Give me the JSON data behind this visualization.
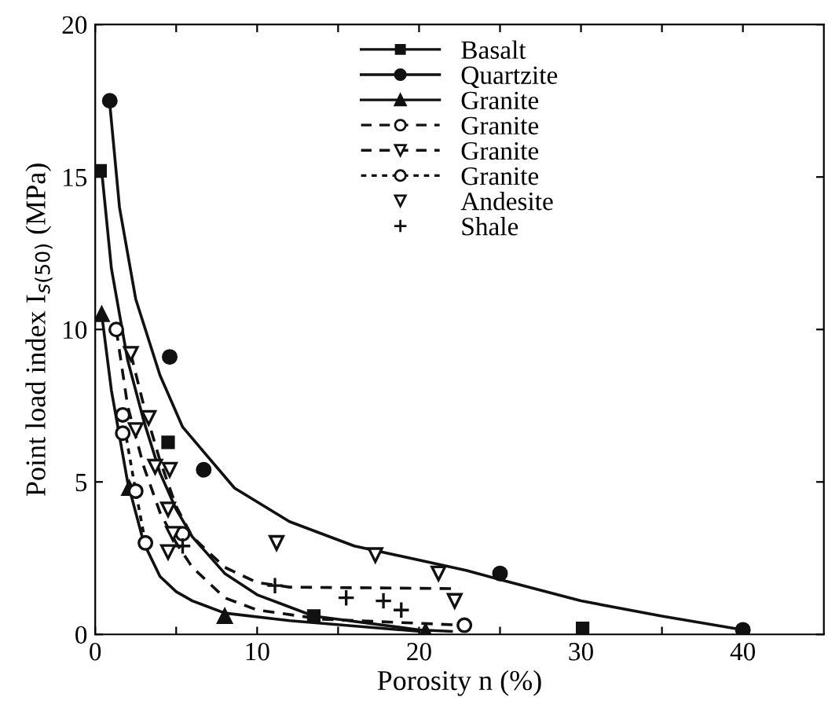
{
  "chart_data": {
    "type": "scatter",
    "xlabel": "Porosity n (%)",
    "ylabel": "Point load index I$_{s(50)}$ (MPa)",
    "xlim": [
      0,
      45
    ],
    "ylim": [
      0,
      20
    ],
    "xticks": [
      0,
      {
        "value": 5,
        "label": null
      },
      10,
      {
        "value": 15,
        "label": null
      },
      20,
      {
        "value": 25,
        "label": null
      },
      30,
      {
        "value": 35,
        "label": null
      },
      40
    ],
    "yticks": [
      0,
      5,
      10,
      15,
      20
    ],
    "grid": false,
    "legend": "top",
    "color": "#111111",
    "series": [
      {
        "name": "Basalt",
        "marker": "square",
        "x": [
          0.3,
          4.5,
          13.5,
          30.1
        ],
        "values": [
          15.2,
          6.3,
          0.6,
          0.2
        ]
      },
      {
        "type": "line",
        "line_style": "solid",
        "x": [
          0,
          0.4,
          1,
          2,
          3,
          4,
          5,
          6,
          8,
          10,
          13.5,
          20,
          22
        ],
        "values": [
          15.2,
          15.2,
          12,
          9,
          7,
          5.3,
          4.1,
          3.2,
          2,
          1.3,
          0.6,
          0.15,
          0.1
        ]
      },
      {
        "name": "Quartzite",
        "marker": "circle",
        "x": [
          0.9,
          4.6,
          6.7,
          25,
          40
        ],
        "values": [
          17.5,
          9.1,
          5.4,
          2.0,
          0.15
        ]
      },
      {
        "type": "line",
        "line_style": "solid",
        "x": [
          0.9,
          1.5,
          2.5,
          4,
          5.4,
          8.6,
          12,
          16,
          22.9,
          25,
          30,
          35,
          40
        ],
        "values": [
          17.4,
          14,
          11,
          8.5,
          6.8,
          4.8,
          3.7,
          2.9,
          2.1,
          1.8,
          1.1,
          0.6,
          0.15
        ]
      },
      {
        "name": "Granite",
        "marker": "triangle",
        "x": [
          0.4,
          2.1,
          8.0,
          20.4
        ],
        "values": [
          10.5,
          4.8,
          0.6,
          0.1
        ]
      },
      {
        "type": "line",
        "line_style": "solid",
        "x": [
          0.4,
          1,
          2,
          3,
          4,
          5,
          6,
          8,
          12,
          20
        ],
        "values": [
          10.5,
          8,
          5,
          3,
          1.9,
          1.4,
          1.1,
          0.7,
          0.45,
          0.1
        ]
      },
      {
        "name": "Granite",
        "marker": "circle",
        "color": "#ffffff",
        "x": [
          1.3,
          5.4,
          22.8
        ],
        "values": [
          10.0,
          3.3,
          0.3
        ]
      },
      {
        "type": "line",
        "line_style": "dashed",
        "x": [
          1.3,
          2,
          3,
          4,
          5,
          6,
          8,
          10,
          14,
          22.8
        ],
        "values": [
          10,
          7.5,
          5.5,
          4,
          3,
          2.2,
          1.2,
          0.8,
          0.5,
          0.3
        ]
      },
      {
        "name": "Granite",
        "marker": "triangle",
        "color": "#ffffff",
        "x": [
          2.2,
          3.3,
          2.5,
          3.7,
          4.6,
          4.5,
          4.8,
          4.5
        ],
        "values": [
          9.2,
          7.1,
          6.7,
          5.5,
          5.4,
          4.1,
          3.3,
          2.7
        ]
      },
      {
        "type": "line",
        "line_style": "dashed",
        "x": [
          2.2,
          3,
          4,
          5,
          6,
          8,
          10,
          12,
          22.5
        ],
        "values": [
          9.2,
          7.5,
          5.7,
          4.2,
          3.2,
          2.2,
          1.7,
          1.55,
          1.5
        ]
      },
      {
        "name": "Granite",
        "marker": "circle",
        "color": "#ffffff",
        "x": [
          1.7,
          1.7,
          2.5,
          3.1
        ],
        "values": [
          7.2,
          6.6,
          4.7,
          3.0
        ]
      },
      {
        "type": "line",
        "line_style": "dotted",
        "x": [
          1.7,
          2,
          2.5,
          3.1
        ],
        "values": [
          7.2,
          6.2,
          4.7,
          3.0
        ]
      },
      {
        "name": "Andesite",
        "marker": "triangle",
        "color": "#ffffff",
        "x": [
          11.2,
          17.3,
          21.2,
          22.2
        ],
        "values": [
          3.0,
          2.6,
          2.0,
          1.1
        ]
      },
      {
        "name": "Shale",
        "marker": "cross",
        "x": [
          5.4,
          11.1,
          15.5,
          17.8,
          18.9
        ],
        "values": [
          2.9,
          1.6,
          1.2,
          1.1,
          0.8
        ]
      }
    ]
  }
}
